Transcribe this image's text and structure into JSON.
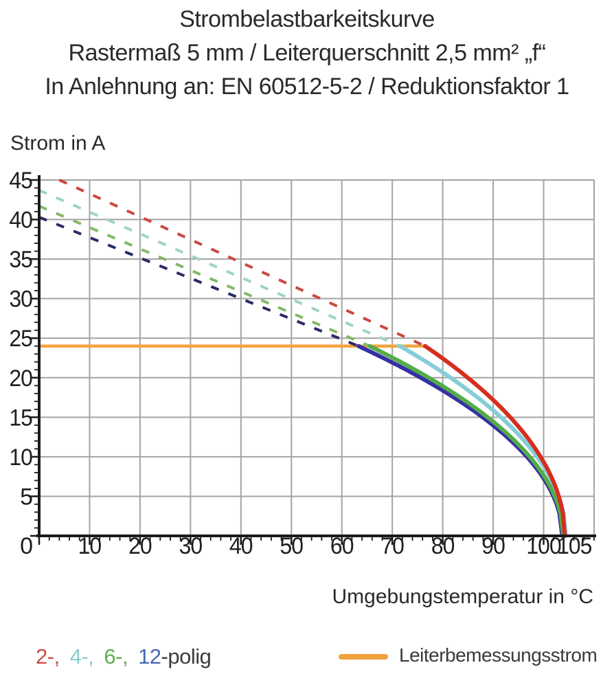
{
  "title": {
    "line1": "Strombelastbarkeitskurve",
    "line2": "Rastermaß 5 mm / Leiterquerschnitt 2,5 mm² „f“",
    "line3": "In Anlehnung an: EN 60512-5-2 / Reduktionsfaktor 1"
  },
  "y_axis_title": "Strom in A",
  "x_axis_title": "Umgebungstemperatur in °C",
  "legend": {
    "pole_items": [
      {
        "label": "2-,",
        "color": "#cc4a42"
      },
      {
        "label": "4-,",
        "color": "#8ac9ce"
      },
      {
        "label": "6-,",
        "color": "#5fae52"
      },
      {
        "label": "12",
        "color": "#4569b0"
      }
    ],
    "pole_suffix": "-polig",
    "rated_current_label": "Leiterbemessungsstrom",
    "rated_current_color": "#f0a23c"
  },
  "chart_data": {
    "type": "line",
    "title": "Strombelastbarkeitskurve",
    "xlabel": "Umgebungstemperatur in °C",
    "ylabel": "Strom in A",
    "xlim": [
      0,
      110
    ],
    "ylim": [
      0,
      45
    ],
    "x_major_ticks": [
      10,
      20,
      30,
      40,
      50,
      60,
      70,
      80,
      90,
      100,
      105
    ],
    "x_gridlines": [
      10,
      20,
      30,
      40,
      50,
      60,
      70,
      80,
      90,
      100,
      110
    ],
    "x_minor_step": 2,
    "y_major_ticks": [
      0,
      5,
      10,
      15,
      20,
      25,
      30,
      35,
      40,
      45
    ],
    "y_minor_step": 1,
    "grid": true,
    "grid_color": "#a3a3a3",
    "axis_color": "#1a1a1a",
    "rated_current": {
      "name": "Leiterbemessungsstrom",
      "value_a": 24,
      "x_start": 0,
      "x_end": 77,
      "color": "#f3a43e"
    },
    "series": [
      {
        "name": "2-polig",
        "poles": 2,
        "solid_color": "#d62e1f",
        "dashed_color": "#c84a40",
        "dashed_segment": {
          "x_start": 4,
          "y_start": 45,
          "x_end": 76.5,
          "y_end": 24
        },
        "solid_curve": {
          "x_start": 76.5,
          "y_start": 24,
          "x_end": 104.2,
          "y_end": 0,
          "shape": "sqrt"
        }
      },
      {
        "name": "4-polig",
        "poles": 4,
        "solid_color": "#85ced8",
        "dashed_color": "#9fd2cc",
        "dashed_segment": {
          "x_start": 0,
          "y_start": 43.7,
          "x_end": 71.5,
          "y_end": 24
        },
        "solid_curve": {
          "x_start": 71.5,
          "y_start": 24,
          "x_end": 104.4,
          "y_end": 0,
          "shape": "sqrt"
        }
      },
      {
        "name": "6-polig",
        "poles": 6,
        "solid_color": "#54ac48",
        "dashed_color": "#83b968",
        "dashed_segment": {
          "x_start": 0,
          "y_start": 41.7,
          "x_end": 65.5,
          "y_end": 24
        },
        "solid_curve": {
          "x_start": 65.5,
          "y_start": 24,
          "x_end": 103.9,
          "y_end": 0,
          "shape": "sqrt"
        }
      },
      {
        "name": "12-polig",
        "poles": 12,
        "solid_color": "#3431a3",
        "dashed_color": "#2b2a68",
        "dashed_segment": {
          "x_start": 0,
          "y_start": 40.3,
          "x_end": 63.3,
          "y_end": 24
        },
        "solid_curve": {
          "x_start": 63.3,
          "y_start": 24,
          "x_end": 103.7,
          "y_end": 0,
          "shape": "sqrt"
        }
      }
    ]
  }
}
